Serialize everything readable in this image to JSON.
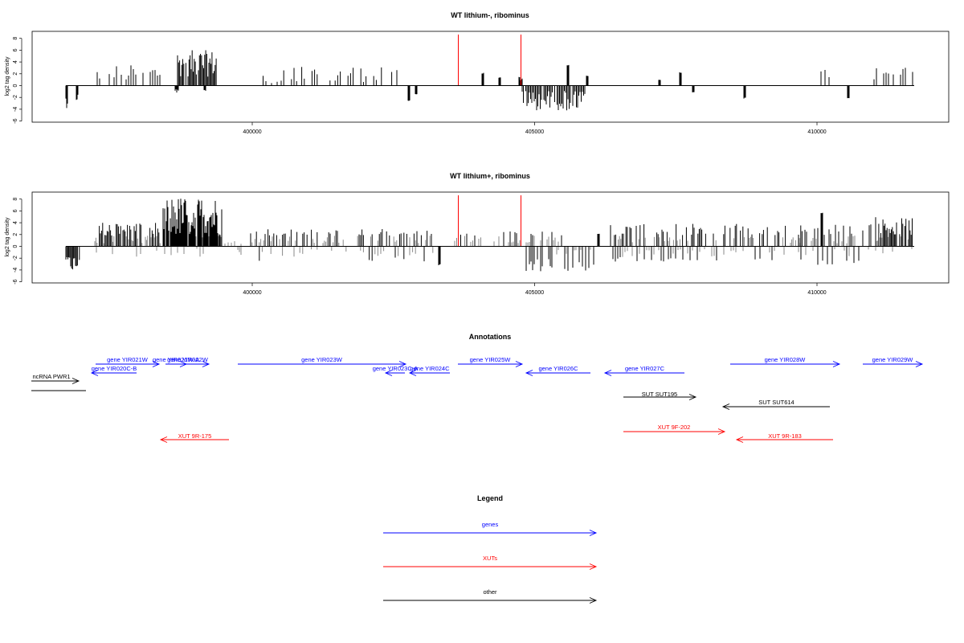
{
  "colors": {
    "genes": "#0000ff",
    "XUTs": "#ff0000",
    "other": "#000000",
    "marker": "#ff0000",
    "signal": "#000000",
    "signal_dense": "#888888"
  },
  "chart_data": [
    {
      "type": "bar",
      "title": "WT lithium-, ribominus",
      "ylabel": "log2 tag density",
      "xlim": [
        367600,
        411800
      ],
      "ylim": [
        -6,
        9
      ],
      "x_ticks": [
        400000,
        405000,
        410000
      ],
      "x_tick_labels": [
        "400000",
        "405000",
        "410000"
      ],
      "y_ticks": [
        -6,
        -4,
        -2,
        0,
        2,
        4,
        6,
        8
      ],
      "y_tick_labels": [
        "-6",
        "-4",
        "-2",
        "0",
        "2",
        "4",
        "6",
        "8"
      ],
      "baseline": {
        "x_start": 364050,
        "x_end": 414150
      },
      "red_markers_x": [
        403650,
        404750
      ],
      "positive_x": [
        364100,
        364200,
        364300,
        364400,
        364500,
        364600,
        364700,
        364800,
        364900,
        365000,
        365100,
        365200,
        365300,
        365400,
        365500,
        365600,
        365700,
        365800,
        365900,
        366000,
        366100,
        366200,
        366300,
        366400,
        366500,
        366600,
        366700,
        366800,
        366900,
        367000,
        367100,
        367200,
        367300,
        367400,
        367500,
        367600,
        367700,
        367800,
        367900,
        368000,
        368100,
        368200,
        368300,
        368400,
        368500,
        368600,
        368700,
        368800,
        368900,
        369000,
        369100,
        369200,
        369300,
        369400,
        369500,
        369600,
        369700,
        369800,
        369900,
        370000,
        370100,
        370200,
        370300,
        370400,
        370500,
        370600,
        370700,
        370800,
        370900,
        371000,
        371100,
        371200,
        371300,
        371400,
        371500,
        371600,
        371700,
        371800,
        371900,
        372000,
        372100,
        372200,
        372300,
        372400,
        372500,
        372600,
        372700,
        372800,
        372900,
        373000,
        373100,
        373200,
        373300,
        373400,
        373500,
        373600,
        373700,
        373800,
        373900,
        374000,
        374100,
        374200,
        374300,
        374400,
        374500,
        374600,
        374700,
        374800,
        374900,
        375000,
        375100,
        375200,
        375300,
        375400,
        375500,
        375600,
        375700,
        375800,
        375900,
        376000,
        376100,
        376200,
        376300,
        376400,
        376500,
        376600,
        376700,
        376800,
        376900,
        377000,
        377100,
        377200,
        377300,
        377400,
        377500,
        377600,
        377700,
        377800,
        377900,
        378000,
        378100,
        378200,
        378300,
        378400,
        378500,
        378600,
        378700,
        378800,
        378900,
        379000,
        379100,
        379200,
        379300,
        379400,
        379500,
        379600,
        379700,
        379800,
        379900,
        380000,
        380100,
        380200,
        380300,
        380400,
        380500,
        380600,
        380700,
        380800,
        380900,
        381000,
        381100,
        381200,
        381300,
        381400,
        381500,
        381600,
        381700,
        381800,
        381900,
        382000,
        382100,
        382200,
        382300,
        382400,
        382500,
        382600,
        382700,
        382800,
        382900,
        383000,
        383100,
        383200,
        383300,
        383400,
        383500,
        383600,
        383700,
        383800,
        383900,
        384000,
        384100,
        384200,
        384300,
        384400,
        384500,
        384600,
        384700,
        384800,
        384900,
        385000,
        385100,
        385200,
        385300,
        385400,
        385500,
        385600,
        385700,
        385800,
        385900,
        386000,
        386100,
        386200,
        386300,
        386400,
        386500,
        386600,
        386700,
        386800,
        386900,
        387000,
        387100,
        387200,
        387300,
        387400,
        387500,
        387600,
        387700,
        387800,
        387900,
        388000,
        388100,
        388200,
        388300,
        388400,
        388500,
        388600,
        388700,
        388800,
        388900,
        389000,
        389100,
        389200,
        389300,
        389400,
        389500,
        389600,
        389700,
        389800,
        389900,
        390000,
        390100,
        390200,
        390300,
        390400,
        390500,
        390600,
        390700,
        390800,
        390900,
        391000,
        391100,
        391200,
        391300,
        391400,
        391500,
        391600,
        391700,
        391800,
        391900,
        392000,
        392100,
        392200,
        392300,
        392400,
        392500,
        392600,
        392700,
        392800,
        392900,
        393000,
        393100,
        393200,
        393300,
        393400,
        393500,
        393600,
        393700,
        393800,
        393900,
        394000,
        394100,
        394200,
        394300,
        394400,
        394500,
        394600,
        394700,
        394800,
        394900,
        395000,
        395100,
        395200,
        395300,
        395400,
        395500,
        395600,
        395700,
        395800,
        395900,
        396000,
        396100,
        396200,
        396300,
        396400,
        396500,
        396600,
        396700,
        396800,
        396900,
        397000,
        397100,
        397200,
        397300,
        397400,
        397500,
        397600,
        397700,
        397800,
        397900,
        398000,
        398100,
        398200,
        398300,
        398400,
        398500,
        398600,
        398700,
        398800,
        398900,
        399000,
        399100,
        399200,
        399300,
        399400,
        399500,
        399600,
        399700,
        399800,
        399900,
        400000,
        400100,
        400200,
        400300,
        400400,
        400500,
        400600,
        400700,
        400800,
        400900,
        401000,
        401100,
        401200,
        401300,
        401400,
        401500,
        401600,
        401700,
        401800,
        401900,
        402000,
        402100,
        402200,
        402300,
        402400,
        402500,
        402600,
        402700,
        402800,
        402900,
        403000,
        403100,
        403200,
        403300,
        403400,
        403500,
        403600,
        403700,
        403800,
        403900,
        404000,
        404100,
        404200,
        404300,
        404400,
        404500,
        404600,
        404700,
        404800,
        404900,
        405000,
        405100,
        405200,
        405300,
        405400,
        405500,
        405600,
        405700,
        405800,
        405900,
        406000,
        406100,
        406200,
        406300,
        406400,
        406500,
        406600,
        406700,
        406800,
        406900,
        407000,
        407100,
        407200,
        407300,
        407400,
        407500,
        407600,
        407700,
        407800,
        407900,
        408000,
        408100,
        408200,
        408300,
        408400,
        408500,
        408600,
        408700,
        408800,
        408900,
        409000,
        409100,
        409200,
        409300,
        409400,
        409500,
        409600,
        409700,
        409800,
        409900,
        410000,
        410100,
        410200,
        410300,
        410400,
        410500,
        410600,
        410700,
        410800,
        410900,
        411000,
        411100,
        411200,
        411300,
        411400,
        411500,
        411600,
        411700,
        411800,
        411900,
        412000,
        412100,
        412200,
        412300,
        412400,
        412500,
        412600,
        412700,
        412800,
        412900,
        413000,
        413100,
        413200,
        413300,
        413400,
        413500,
        413600,
        413700,
        413800,
        413900,
        414000,
        414100
      ],
      "positive_y": [
        0,
        0,
        0,
        0,
        0,
        0,
        0,
        0,
        0,
        0,
        0,
        0,
        0,
        0,
        0,
        0,
        0,
        0,
        0,
        0,
        0,
        0,
        0,
        0,
        0,
        0,
        0,
        0,
        0,
        0,
        0,
        0,
        0,
        0,
        0,
        0,
        0,
        0,
        0,
        0,
        0,
        0,
        0,
        0,
        0,
        0,
        0,
        0,
        0,
        0,
        0,
        0,
        0,
        0,
        0,
        0,
        0,
        0,
        0,
        0,
        0,
        0,
        0,
        0,
        0,
        0,
        0,
        0,
        0,
        0,
        0,
        0,
        0,
        0,
        0,
        0,
        0,
        0,
        0,
        0,
        0,
        0,
        0,
        0,
        0,
        0,
        0,
        0,
        0,
        0,
        0,
        0,
        0,
        0,
        0,
        0,
        0,
        0,
        0,
        0,
        0,
        0,
        0,
        0,
        0,
        0,
        0,
        0,
        0,
        0,
        0,
        0,
        0,
        0,
        0,
        0,
        0,
        0,
        0,
        0,
        0,
        0,
        0,
        0,
        0,
        0,
        0,
        0,
        0,
        0,
        0,
        0,
        0,
        0,
        0,
        0,
        0,
        0,
        0,
        0,
        0,
        0,
        0,
        0,
        0,
        0,
        0,
        0,
        0,
        0,
        0,
        0,
        0,
        0,
        0,
        0,
        0,
        0,
        0,
        0,
        0,
        0,
        0,
        0,
        0,
        0,
        0,
        0,
        0,
        0,
        0,
        0,
        0,
        0,
        0,
        0,
        0,
        0,
        0,
        0,
        0,
        0,
        0,
        0,
        0,
        0,
        0,
        0,
        0,
        0,
        0,
        0,
        0,
        0,
        0,
        0,
        0,
        0,
        0,
        0,
        0,
        0,
        0,
        0,
        0,
        0,
        0,
        0,
        0,
        0,
        0,
        0,
        0,
        0,
        0,
        0,
        0,
        0,
        0,
        0,
        0,
        0,
        0,
        0,
        0,
        0,
        0,
        0,
        0,
        0,
        0,
        0,
        0,
        0,
        0,
        0,
        0,
        0,
        0,
        0,
        0,
        0,
        0,
        0,
        0,
        0,
        0,
        0,
        0,
        0,
        0,
        0,
        0,
        0,
        0,
        0,
        0,
        0,
        0,
        0,
        0,
        0,
        0,
        0,
        0,
        0,
        0,
        0,
        0,
        0,
        0,
        0,
        0,
        0,
        0,
        0,
        0,
        0,
        0,
        0,
        0,
        0,
        0,
        0,
        0,
        0,
        0,
        0,
        0,
        0,
        0,
        0,
        0,
        0,
        0,
        0,
        0,
        0,
        0,
        0,
        0,
        0,
        0,
        0,
        0,
        0,
        0,
        0,
        0,
        0,
        0,
        0,
        0,
        0,
        0,
        0,
        0,
        0,
        0,
        0,
        0,
        0,
        0,
        0,
        0,
        0,
        0,
        0,
        0,
        0,
        0,
        0,
        0,
        0,
        0,
        0,
        0,
        0,
        0,
        0,
        0,
        0,
        0,
        0,
        0,
        0,
        0,
        0,
        0,
        0,
        0,
        0,
        0,
        0,
        0,
        0,
        0,
        0,
        0,
        0,
        0,
        0,
        0,
        0,
        0,
        0,
        0,
        0,
        0,
        0,
        0,
        0,
        0,
        0,
        0,
        0,
        0,
        0,
        0,
        0,
        0,
        0,
        0,
        0,
        0,
        0,
        0,
        0,
        0,
        0,
        0,
        0,
        0,
        0,
        0,
        0,
        0,
        0,
        0,
        0,
        0,
        0,
        0,
        0,
        0,
        0,
        0,
        0,
        0,
        0,
        0,
        0,
        0,
        0,
        0,
        0,
        0,
        0,
        0,
        0,
        0,
        0,
        0,
        0,
        0,
        0,
        0,
        0,
        0,
        0,
        0,
        0,
        0,
        0,
        0,
        0,
        0,
        0,
        0,
        0,
        0,
        0,
        0,
        0,
        0,
        0,
        0,
        0,
        0,
        0,
        0,
        0,
        0,
        0,
        0,
        0,
        0,
        0,
        0,
        0,
        0,
        0,
        0,
        0,
        0,
        0,
        0,
        0,
        0,
        0,
        0,
        0,
        0,
        0,
        0,
        0,
        0,
        0,
        0,
        0,
        0,
        0,
        0,
        0,
        0,
        0,
        0,
        0,
        0,
        0,
        0,
        0,
        0,
        0,
        0,
        0,
        0,
        0,
        0,
        0,
        0,
        0,
        0,
        0,
        0,
        0,
        0,
        0,
        0,
        0,
        0,
        0,
        0,
        0,
        0,
        0,
        0,
        0,
        0,
        0,
        0,
        0,
        0,
        0,
        0,
        0,
        0,
        0,
        0,
        0,
        0,
        0,
        0,
        0,
        0,
        0,
        0,
        0,
        0,
        0,
        0,
        0,
        0,
        0,
        0,
        0,
        0,
        0,
        0,
        0,
        0,
        0,
        0,
        0,
        0,
        0,
        0,
        0,
        0,
        0,
        0,
        0,
        0
      ]
    },
    {
      "type": "bar",
      "title": "WT lithium+, ribominus",
      "ylabel": "log2 tag density",
      "xlim": [
        367600,
        411800
      ],
      "ylim": [
        -6,
        9
      ],
      "x_ticks": [
        400000,
        405000,
        410000
      ],
      "x_tick_labels": [
        "400000",
        "405000",
        "410000"
      ],
      "y_ticks": [
        -6,
        -4,
        -2,
        0,
        2,
        4,
        6,
        8
      ],
      "y_tick_labels": [
        "-6",
        "-4",
        "-2",
        "0",
        "2",
        "4",
        "6",
        "8"
      ],
      "baseline": {
        "x_start": 364050,
        "x_end": 414150
      },
      "red_markers_x": [
        403650,
        404750
      ]
    }
  ],
  "annotations": {
    "title": "Annotations",
    "features": [
      {
        "label": "ncRNA PWR1",
        "category": "other",
        "strand": "+",
        "start": 364050,
        "end": 365000,
        "row": 0
      },
      {
        "label": "gene YIR020C-B",
        "category": "genes",
        "strand": "-",
        "start": 365150,
        "end": 365950,
        "row": 1
      },
      {
        "label": "gene YIR021W",
        "category": "genes",
        "strand": "+",
        "start": 365150,
        "end": 366350,
        "row": 2
      },
      {
        "label": "gene YIR021W-A",
        "category": "genes",
        "strand": "+",
        "start": 366000,
        "end": 366650,
        "row": 2
      },
      {
        "label": "gene YIR022W",
        "category": "genes",
        "strand": "+",
        "start": 366800,
        "end": 367550,
        "row": 2
      },
      {
        "label": "gene YIR023W",
        "category": "genes",
        "strand": "+",
        "start": 367900,
        "end": 370850,
        "row": 2
      },
      {
        "label": "gene YIR023C-A",
        "category": "genes",
        "strand": "-",
        "start": 370500,
        "end": 370850,
        "row": 1
      },
      {
        "label": "gene YIR024C",
        "category": "genes",
        "strand": "-",
        "start": 370900,
        "end": 371550,
        "row": 1
      },
      {
        "label": "gene YIR025W",
        "category": "genes",
        "strand": "+",
        "start": 371700,
        "end": 372850,
        "row": 2
      },
      {
        "label": "gene YIR026C",
        "category": "genes",
        "strand": "-",
        "start": 373000,
        "end": 374100,
        "row": 1
      },
      {
        "label": "gene YIR027C",
        "category": "genes",
        "strand": "-",
        "start": 374400,
        "end": 375800,
        "row": 1
      },
      {
        "label": "gene YIR028W",
        "category": "genes",
        "strand": "+",
        "start": 376650,
        "end": 378600,
        "row": 2
      },
      {
        "label": "gene YIR029W",
        "category": "genes",
        "strand": "+",
        "start": 378850,
        "end": 379900,
        "row": 2
      },
      {
        "label": "SUT SUT195",
        "category": "other",
        "strand": "+",
        "start": 374750,
        "end": 376050,
        "row": 3
      },
      {
        "label": "SUT SUT614",
        "category": "other",
        "strand": "-",
        "start": 376500,
        "end": 378400,
        "row": 4
      },
      {
        "label": "XUT 9R-175",
        "category": "XUTs",
        "strand": "-",
        "start": 366200,
        "end": 367350,
        "row": 5
      },
      {
        "label": "XUT 9F-202",
        "category": "XUTs",
        "strand": "+",
        "start": 374750,
        "end": 376550,
        "row": 6
      },
      {
        "label": "XUT 9R-183",
        "category": "XUTs",
        "strand": "-",
        "start": 376750,
        "end": 378450,
        "row": 5
      }
    ]
  },
  "legend": {
    "title": "Legend",
    "items": [
      {
        "label": "genes",
        "category": "genes"
      },
      {
        "label": "XUTs",
        "category": "XUTs"
      },
      {
        "label": "other",
        "category": "other"
      }
    ]
  }
}
